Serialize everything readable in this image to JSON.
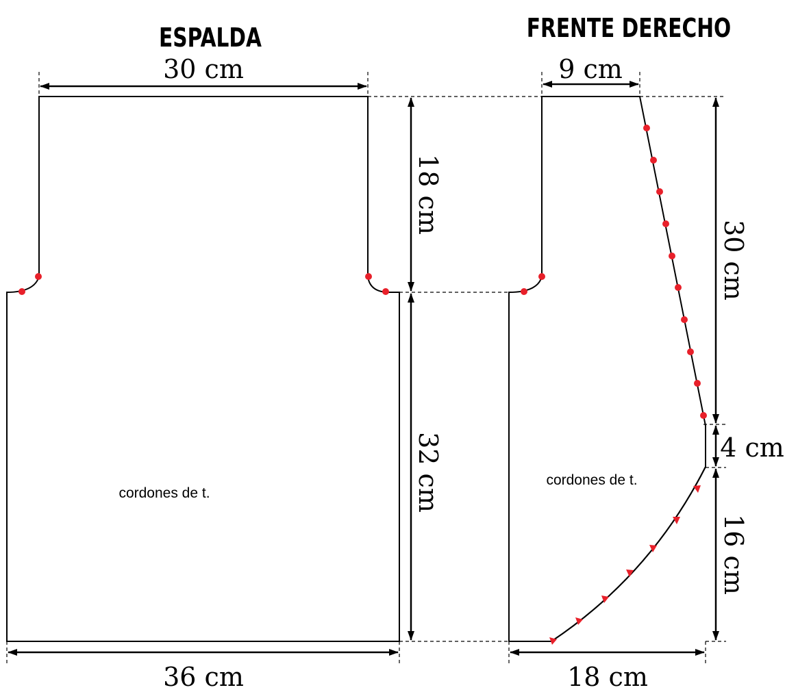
{
  "colors": {
    "marker": "#e8202a",
    "line": "#000000"
  },
  "back_piece": {
    "title": "ESPALDA",
    "width_top": "30 cm",
    "armhole_height": "18 cm",
    "body_height": "32 cm",
    "width_bottom": "36 cm",
    "stitch_note": "cordones de t."
  },
  "front_piece": {
    "title": "FRENTE DERECHO",
    "shoulder_width": "9 cm",
    "neck_height": "30 cm",
    "straight_height": "4 cm",
    "curve_height": "16 cm",
    "width_bottom": "18 cm",
    "stitch_note": "cordones de t."
  }
}
